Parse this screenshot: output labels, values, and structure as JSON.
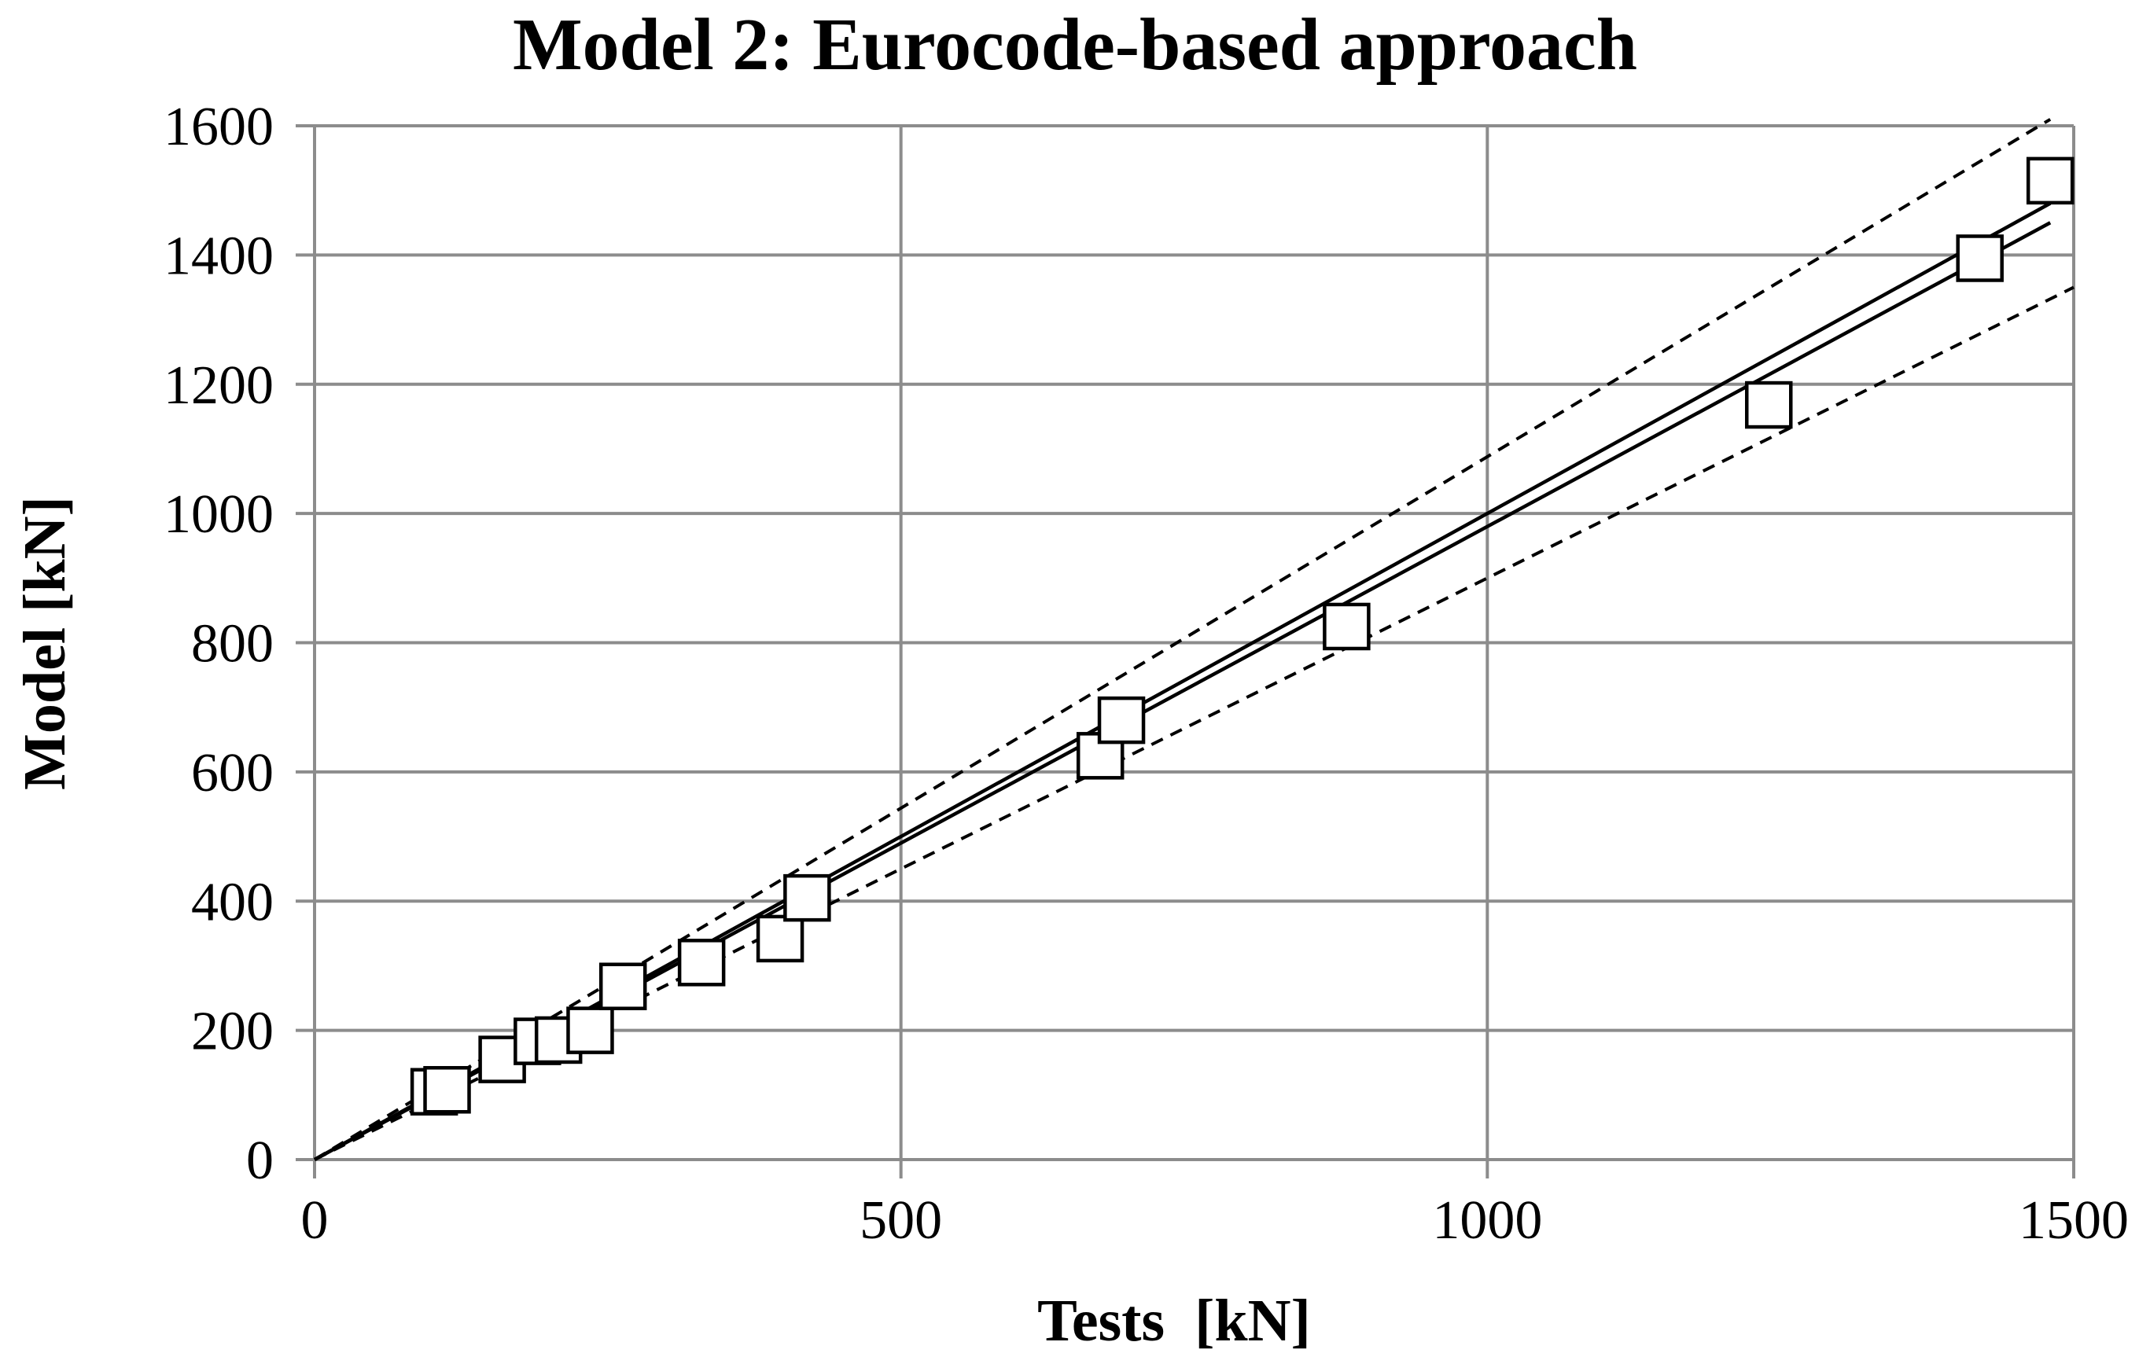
{
  "chart_data": {
    "type": "scatter",
    "title": "Model 2: Eurocode-based approach",
    "xlabel": "Tests  [kN]",
    "ylabel": "Model [kN]",
    "xlim": [
      0,
      1500
    ],
    "ylim": [
      0,
      1600
    ],
    "x_ticks": [
      0,
      500,
      1000,
      1500
    ],
    "y_ticks": [
      0,
      200,
      400,
      600,
      800,
      1000,
      1200,
      1400,
      1600
    ],
    "grid": true,
    "legend": "none",
    "marker": "open-square",
    "points": [
      {
        "x": 102,
        "y": 105
      },
      {
        "x": 113,
        "y": 108
      },
      {
        "x": 160,
        "y": 155
      },
      {
        "x": 190,
        "y": 183
      },
      {
        "x": 208,
        "y": 185
      },
      {
        "x": 235,
        "y": 200
      },
      {
        "x": 263,
        "y": 268
      },
      {
        "x": 330,
        "y": 305
      },
      {
        "x": 397,
        "y": 342
      },
      {
        "x": 420,
        "y": 405
      },
      {
        "x": 670,
        "y": 625
      },
      {
        "x": 688,
        "y": 680
      },
      {
        "x": 880,
        "y": 825
      },
      {
        "x": 1240,
        "y": 1168
      },
      {
        "x": 1420,
        "y": 1395
      },
      {
        "x": 1480,
        "y": 1515
      }
    ],
    "lines": [
      {
        "style": "solid",
        "x": [
          0,
          1480
        ],
        "y": [
          0,
          1480
        ]
      },
      {
        "style": "solid",
        "x": [
          0,
          1480
        ],
        "y": [
          0,
          1450
        ]
      },
      {
        "style": "dashed",
        "x": [
          0,
          1480
        ],
        "y": [
          0,
          1610
        ]
      },
      {
        "style": "dashed",
        "x": [
          0,
          1500
        ],
        "y": [
          0,
          1350
        ]
      }
    ]
  }
}
